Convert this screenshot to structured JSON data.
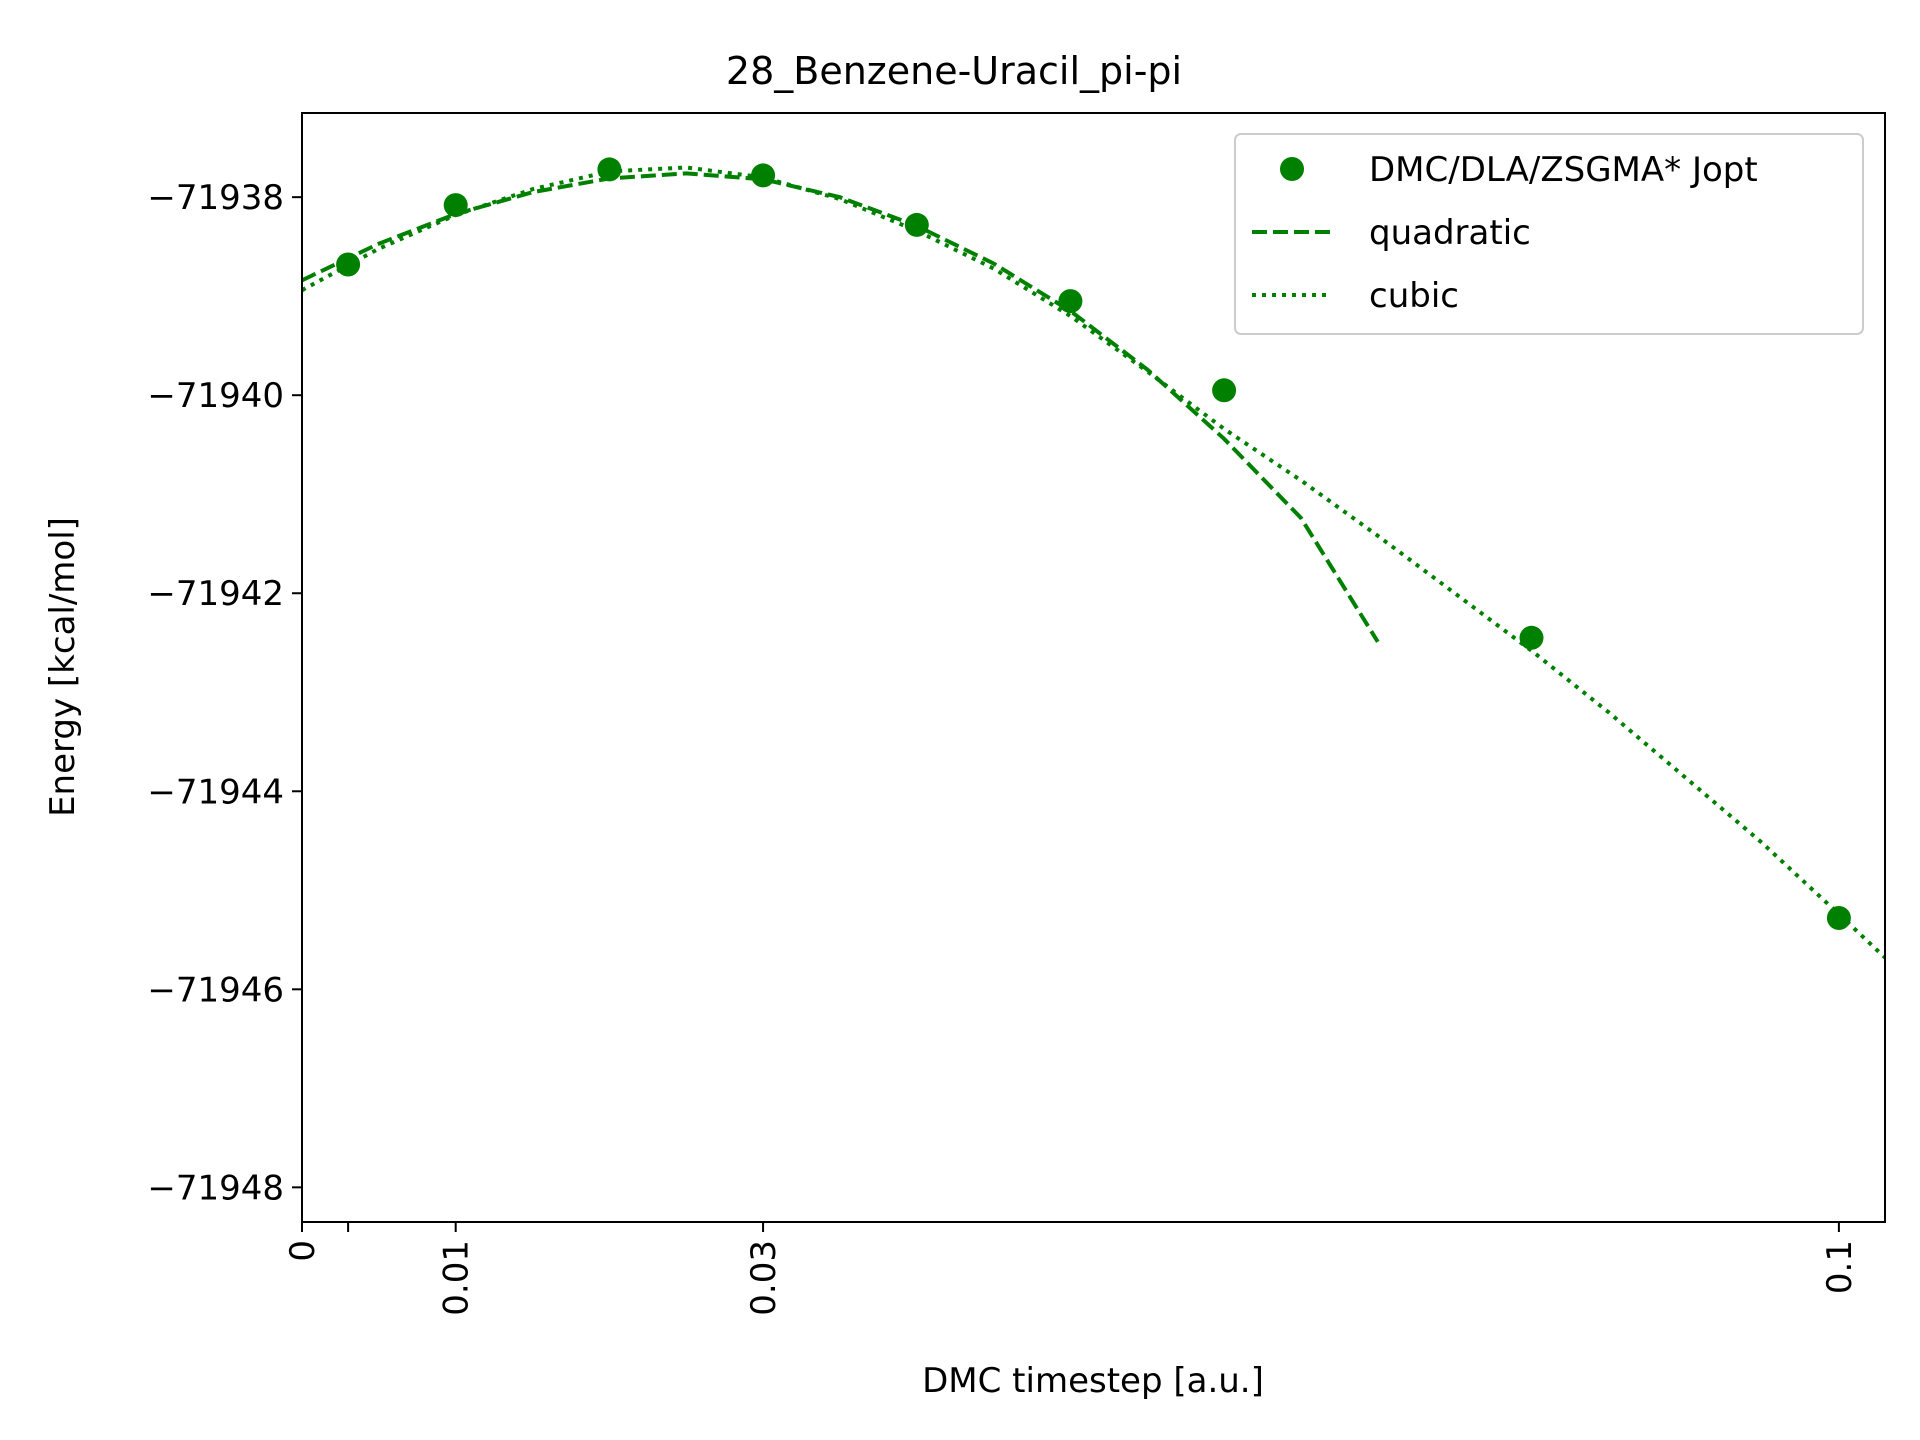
{
  "chart_data": {
    "type": "scatter",
    "title": "28_Benzene-Uracil_pi-pi",
    "xlabel": "DMC timestep [a.u.]",
    "ylabel": "Energy [kcal/mol]",
    "xlim": [
      0,
      0.103
    ],
    "ylim": [
      -71948.35,
      -71937.15
    ],
    "xticks": [
      0,
      0.003,
      0.01,
      0.03,
      0.1
    ],
    "xtick_labels": [
      "0",
      "",
      "0.01",
      "0.03",
      "0.1"
    ],
    "yticks": [
      -71938,
      -71940,
      -71942,
      -71944,
      -71946,
      -71948
    ],
    "ytick_labels": [
      "−71938",
      "−71940",
      "−71942",
      "−71944",
      "−71946",
      "−71948"
    ],
    "legend_position": "top-right",
    "color": "#008000",
    "series": [
      {
        "name": "DMC/DLA/ZSGMA* Jopt",
        "style": "markers",
        "x": [
          0.003,
          0.01,
          0.02,
          0.03,
          0.04,
          0.05,
          0.06,
          0.08,
          0.1
        ],
        "y": [
          -71938.68,
          -71938.08,
          -71937.72,
          -71937.78,
          -71938.28,
          -71939.05,
          -71939.95,
          -71942.45,
          -71945.28
        ]
      },
      {
        "name": "quadratic",
        "style": "dashed",
        "x": [
          0,
          0.005,
          0.01,
          0.015,
          0.02,
          0.025,
          0.03,
          0.035,
          0.04,
          0.045,
          0.05,
          0.055,
          0.06,
          0.065,
          0.07
        ],
        "y": [
          -71938.84,
          -71938.47,
          -71938.17,
          -71937.95,
          -71937.81,
          -71937.76,
          -71937.82,
          -71938.0,
          -71938.29,
          -71938.67,
          -71939.15,
          -71939.74,
          -71940.44,
          -71941.24,
          -71942.49
        ]
      },
      {
        "name": "cubic",
        "style": "dotted",
        "x": [
          0,
          0.005,
          0.01,
          0.015,
          0.02,
          0.025,
          0.03,
          0.035,
          0.04,
          0.045,
          0.05,
          0.055,
          0.06,
          0.065,
          0.07,
          0.075,
          0.08,
          0.085,
          0.09,
          0.095,
          0.1,
          0.103
        ],
        "y": [
          -71938.94,
          -71938.52,
          -71938.18,
          -71937.92,
          -71937.74,
          -71937.7,
          -71937.8,
          -71938.02,
          -71938.34,
          -71938.72,
          -71939.2,
          -71939.76,
          -71940.34,
          -71940.86,
          -71941.42,
          -71942.0,
          -71942.58,
          -71943.2,
          -71943.86,
          -71944.52,
          -71945.24,
          -71945.68
        ]
      }
    ]
  }
}
